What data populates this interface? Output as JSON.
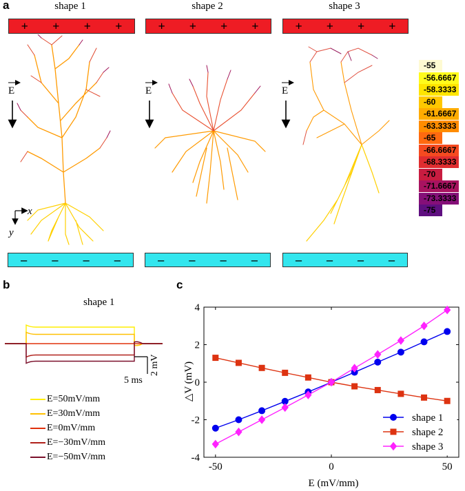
{
  "panel_a": {
    "letter": "a",
    "shapes": [
      {
        "title": "shape 1"
      },
      {
        "title": "shape 2"
      },
      {
        "title": "shape 3"
      }
    ],
    "plus_sign": "+",
    "minus_sign": "–",
    "efield_label": "E",
    "axis_x": "x",
    "axis_y": "y",
    "colorbar": {
      "labels": [
        "-55",
        "-56.6667",
        "-58.3333",
        "-60",
        "-61.6667",
        "-63.3333",
        "-65",
        "-66.6667",
        "-68.3333",
        "-70",
        "-71.6667",
        "-73.3333",
        "-75"
      ],
      "colors": [
        "#fefad2",
        "#fffb1c",
        "#ffe500",
        "#ffc800",
        "#ffac00",
        "#ff8c00",
        "#ff6a10",
        "#f54a20",
        "#e02d30",
        "#c81c40",
        "#a81360",
        "#850f78",
        "#5f0f80"
      ]
    },
    "neuron_colors": {
      "shape1": [
        "#ffd000",
        "#ff8c00",
        "#e84030",
        "#a0155a"
      ],
      "shape2": [
        "#ffb000",
        "#ff7a10",
        "#e04040",
        "#a0155a"
      ],
      "shape3": [
        "#ffd000",
        "#ff9a00",
        "#e05040",
        "#9a2060"
      ]
    }
  },
  "panel_b": {
    "letter": "b",
    "title": "shape 1",
    "scale_x_label": "5 ms",
    "scale_y_label": "2 mV",
    "legend": [
      {
        "label": "E=50mV/mm",
        "color": "#ffee00"
      },
      {
        "label": "E=30mV/mm",
        "color": "#ffc000"
      },
      {
        "label": "E=0mV/mm",
        "color": "#e0300a"
      },
      {
        "label": "E=−30mV/mm",
        "color": "#b0201a"
      },
      {
        "label": "E=−50mV/mm",
        "color": "#7a0f2a"
      }
    ],
    "trace_levels_mV": [
      3.2,
      1.8,
      0,
      -2.2,
      -3.4
    ]
  },
  "chart_data": {
    "type": "line",
    "letter": "c",
    "xlabel": "E (mV/mm)",
    "ylabel": "△V (mV)",
    "xlim": [
      -55,
      55
    ],
    "ylim": [
      -4,
      4
    ],
    "xticks": [
      -50,
      0,
      50
    ],
    "yticks": [
      -4,
      -2,
      0,
      2,
      4
    ],
    "x": [
      -50,
      -40,
      -30,
      -20,
      -10,
      0,
      10,
      20,
      30,
      40,
      50
    ],
    "series": [
      {
        "name": "shape 1",
        "color": "#0000ee",
        "marker": "circle",
        "values": [
          -2.45,
          -2.0,
          -1.52,
          -1.02,
          -0.52,
          0,
          0.53,
          1.07,
          1.6,
          2.15,
          2.7
        ]
      },
      {
        "name": "shape 2",
        "color": "#dd3311",
        "marker": "square",
        "values": [
          1.3,
          1.03,
          0.76,
          0.5,
          0.25,
          0,
          -0.22,
          -0.42,
          -0.62,
          -0.82,
          -1.0
        ]
      },
      {
        "name": "shape 3",
        "color": "#ff22ff",
        "marker": "diamond",
        "values": [
          -3.3,
          -2.65,
          -2.0,
          -1.35,
          -0.68,
          0,
          0.75,
          1.48,
          2.22,
          3.0,
          3.85
        ]
      }
    ],
    "legend_position": "bottom-right",
    "grid": false
  }
}
